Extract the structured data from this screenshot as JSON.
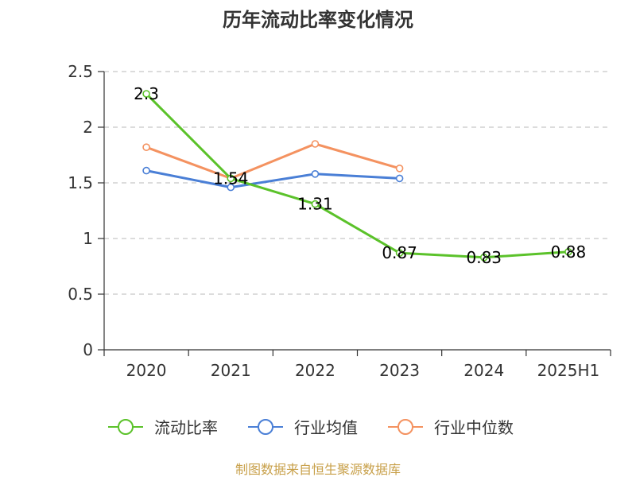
{
  "chart_data": {
    "type": "line",
    "title": "历年流动比率变化情况",
    "categories": [
      "2020",
      "2021",
      "2022",
      "2023",
      "2024",
      "2025H1"
    ],
    "ylim": [
      0,
      2.5
    ],
    "yticks": [
      "0",
      "0.5",
      "1",
      "1.5",
      "2",
      "2.5"
    ],
    "grid": true,
    "legend_position": "bottom",
    "series": [
      {
        "name": "流动比率",
        "color": "#5bc22a",
        "values": [
          2.3,
          1.54,
          1.31,
          0.87,
          0.83,
          0.88
        ],
        "labels": [
          "2.3",
          "1.54",
          "1.31",
          "0.87",
          "0.83",
          "0.88"
        ]
      },
      {
        "name": "行业均值",
        "color": "#4a7fd6",
        "values": [
          1.61,
          1.46,
          1.58,
          1.54,
          null,
          null
        ]
      },
      {
        "name": "行业中位数",
        "color": "#f49260",
        "values": [
          1.82,
          1.54,
          1.85,
          1.63,
          null,
          null
        ]
      }
    ],
    "source": "制图数据来自恒生聚源数据库"
  }
}
